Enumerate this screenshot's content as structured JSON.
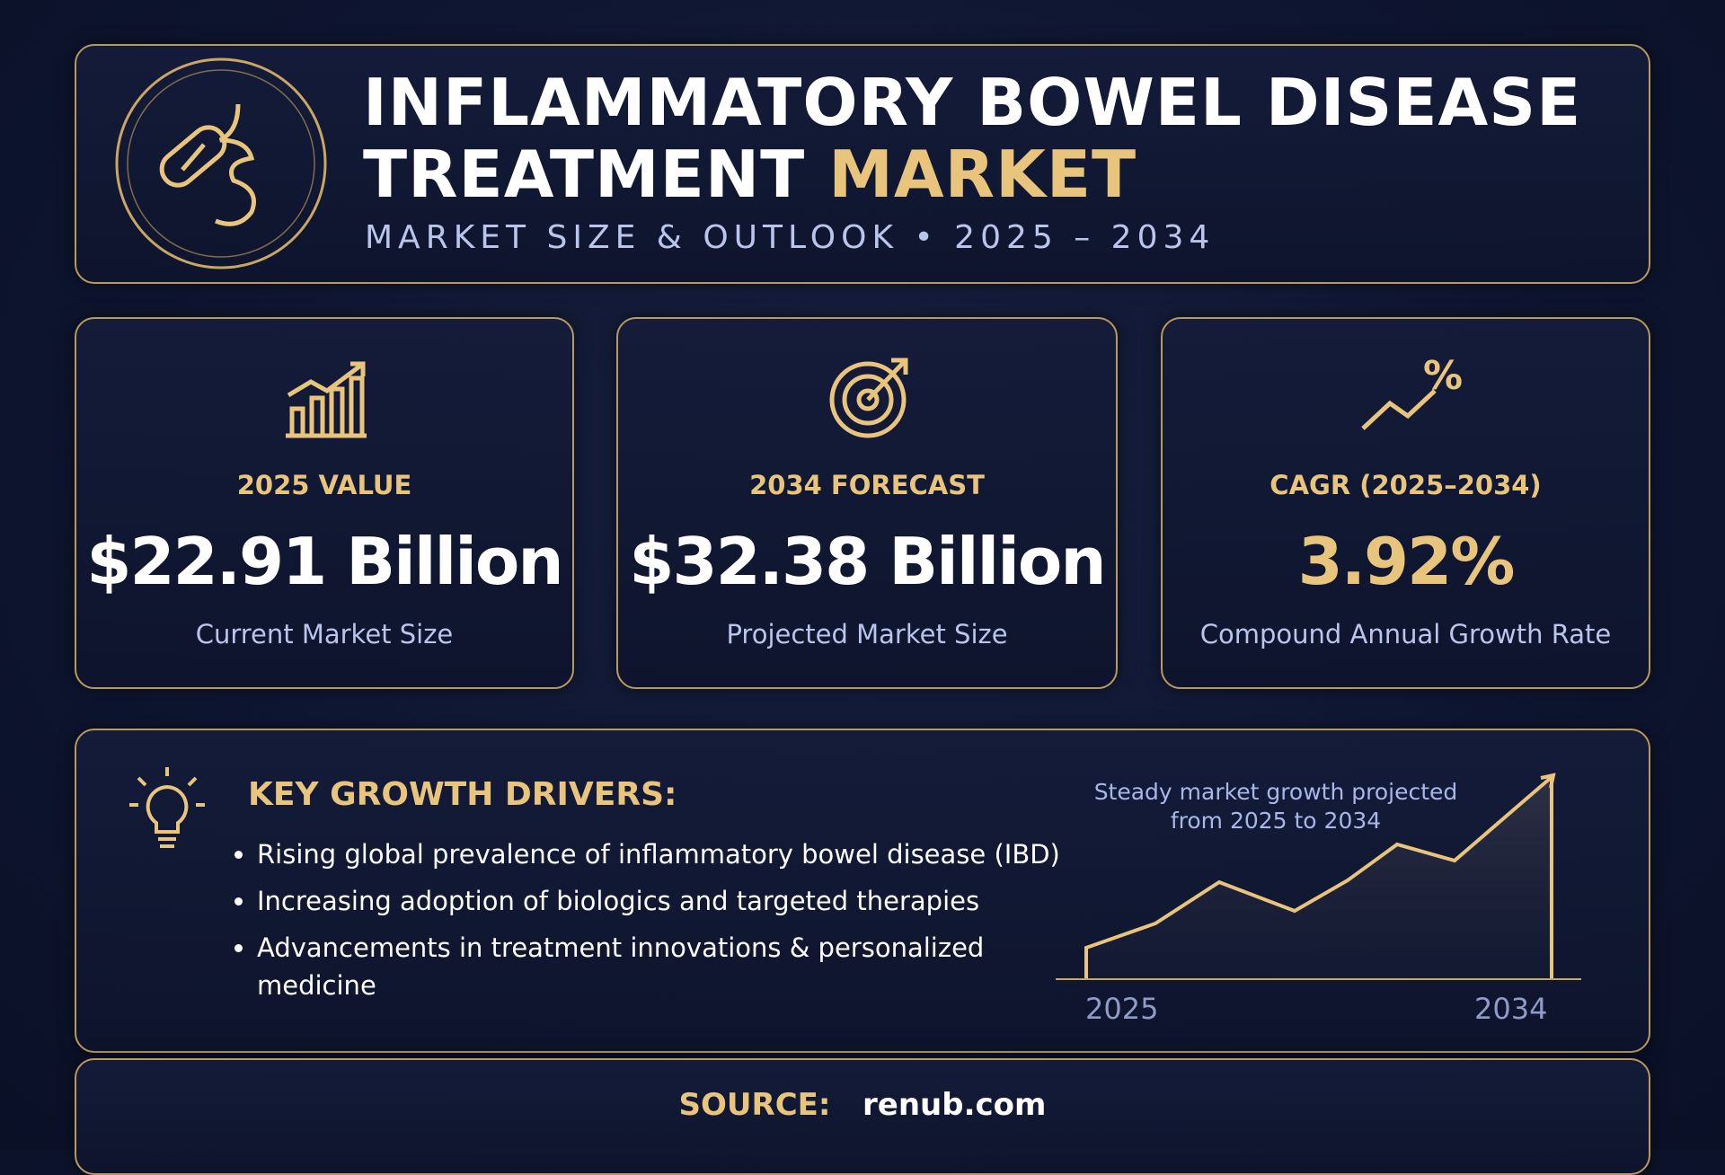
{
  "header": {
    "title_main": "INFLAMMATORY BOWEL DISEASE TREATMENT",
    "title_accent": "MARKET",
    "subtitle": "MARKET SIZE & OUTLOOK • 2025 – 2034"
  },
  "cards": [
    {
      "label": "2025 VALUE",
      "value": "$22.91 Billion",
      "description": "Current Market Size"
    },
    {
      "label": "2034 FORECAST",
      "value": "$32.38 Billion",
      "description": "Projected Market Size"
    },
    {
      "label": "CAGR (2025–2034)",
      "value": "3.92%",
      "description": "Compound Annual Growth Rate"
    }
  ],
  "drivers": {
    "heading": "KEY GROWTH DRIVERS:",
    "items": [
      "Rising global prevalence of inflammatory bowel disease (IBD)",
      "Increasing adoption of biologics and targeted therapies",
      "Advancements in treatment innovations & personalized medicine"
    ]
  },
  "trend": {
    "caption": "Steady market growth projected from 2025 to 2034",
    "start_label": "2025",
    "end_label": "2034"
  },
  "source": {
    "label": "SOURCE:",
    "value": "renub.com"
  }
}
